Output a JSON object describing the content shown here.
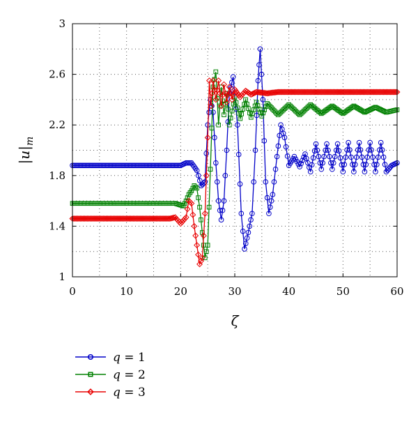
{
  "chart_data": {
    "type": "line",
    "title": "",
    "xlabel": "ζ",
    "ylabel": "|u|",
    "ylabel_sub": "m",
    "xlim": [
      0,
      60
    ],
    "ylim": [
      1,
      3
    ],
    "xticks": [
      0,
      10,
      20,
      30,
      40,
      50,
      60
    ],
    "yticks": [
      1,
      1.4,
      1.8,
      2.2,
      2.6,
      3
    ],
    "ytick_labels": [
      "1",
      "1.4",
      "1.8",
      "2.2",
      "2.6",
      "3"
    ],
    "grid": true,
    "legend_position": "bottom-left",
    "series": [
      {
        "name": "q = 1",
        "name_var": "q",
        "name_rest": " = 1",
        "color": "#0000c8",
        "marker": "circle",
        "x": [
          0,
          10,
          18,
          20,
          21,
          22,
          23,
          23.8,
          24.5,
          25,
          25.5,
          26,
          26.5,
          27,
          27.5,
          28,
          28.5,
          29,
          29.7,
          30.5,
          31.2,
          31.8,
          32.5,
          33.2,
          33.8,
          34.3,
          34.7,
          35.2,
          35.7,
          36.3,
          37,
          37.8,
          38.5,
          39.2,
          40,
          41,
          42,
          43,
          44,
          45,
          46,
          47,
          48,
          49,
          50,
          51,
          52,
          53,
          54,
          55,
          56,
          57,
          58,
          59,
          60
        ],
        "y": [
          1.88,
          1.88,
          1.88,
          1.88,
          1.9,
          1.9,
          1.84,
          1.72,
          1.75,
          2.2,
          2.4,
          2.3,
          1.9,
          1.6,
          1.45,
          1.6,
          2.0,
          2.45,
          2.58,
          2.2,
          1.5,
          1.22,
          1.35,
          1.5,
          2.0,
          2.55,
          2.8,
          2.4,
          1.75,
          1.5,
          1.65,
          1.95,
          2.2,
          2.1,
          1.88,
          1.95,
          1.87,
          1.97,
          1.83,
          2.05,
          1.85,
          2.05,
          1.85,
          2.05,
          1.83,
          2.06,
          1.83,
          2.06,
          1.83,
          2.06,
          1.83,
          2.06,
          1.83,
          1.88,
          1.9
        ]
      },
      {
        "name": "q = 2",
        "name_var": "q",
        "name_rest": " = 2",
        "color": "#008000",
        "marker": "square",
        "x": [
          0,
          10,
          19,
          20.5,
          21,
          21.5,
          22,
          22.5,
          23,
          23.5,
          24,
          24.5,
          25,
          25.5,
          26,
          26.5,
          27,
          27.5,
          28,
          28.5,
          29,
          30,
          31,
          32,
          33,
          34,
          35,
          36,
          38,
          40,
          42,
          44,
          46,
          48,
          50,
          52,
          54,
          56,
          58,
          60
        ],
        "y": [
          1.58,
          1.58,
          1.58,
          1.56,
          1.6,
          1.65,
          1.68,
          1.72,
          1.7,
          1.55,
          1.35,
          1.15,
          1.25,
          1.85,
          2.5,
          2.62,
          2.2,
          2.5,
          2.28,
          2.45,
          2.2,
          2.42,
          2.25,
          2.4,
          2.26,
          2.38,
          2.27,
          2.37,
          2.28,
          2.36,
          2.28,
          2.36,
          2.29,
          2.35,
          2.29,
          2.35,
          2.3,
          2.34,
          2.3,
          2.32
        ]
      },
      {
        "name": "q = 3",
        "name_var": "q",
        "name_rest": " = 3",
        "color": "#e80000",
        "marker": "diamond",
        "x": [
          0,
          10,
          18,
          19,
          20,
          21,
          21.5,
          22,
          22.5,
          23,
          23.5,
          24,
          24.5,
          25,
          25.3,
          25.6,
          26,
          26.5,
          27,
          27.5,
          28,
          28.5,
          29,
          29.5,
          30,
          31,
          32,
          33,
          34,
          36,
          38,
          40,
          45,
          50,
          55,
          60
        ],
        "y": [
          1.46,
          1.46,
          1.46,
          1.47,
          1.42,
          1.47,
          1.6,
          1.58,
          1.4,
          1.25,
          1.1,
          1.15,
          1.5,
          2.1,
          2.55,
          2.35,
          2.55,
          2.4,
          2.55,
          2.35,
          2.52,
          2.38,
          2.5,
          2.4,
          2.48,
          2.42,
          2.47,
          2.44,
          2.46,
          2.45,
          2.46,
          2.46,
          2.46,
          2.46,
          2.46,
          2.46
        ]
      }
    ]
  }
}
